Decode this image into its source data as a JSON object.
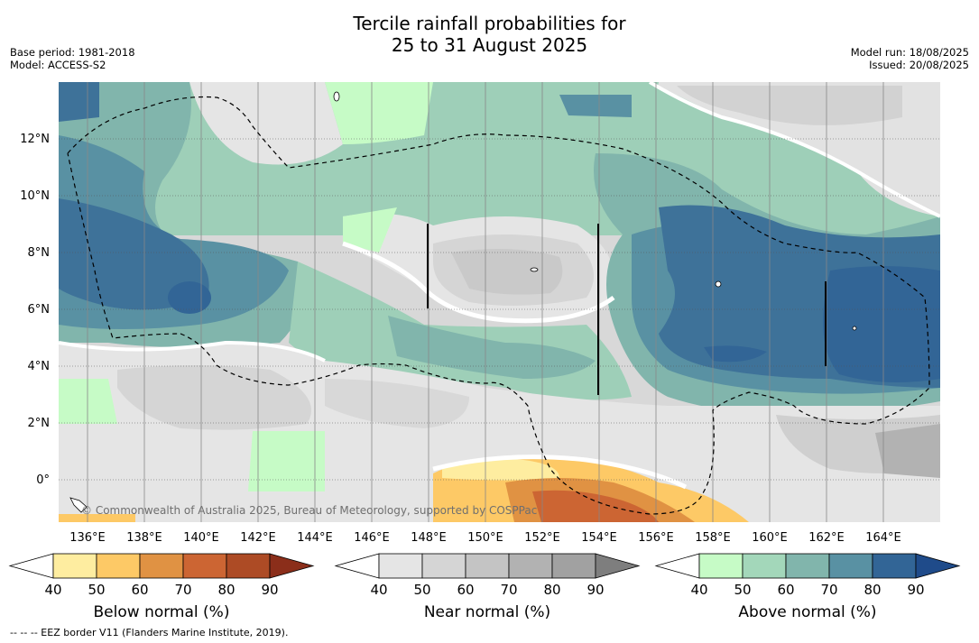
{
  "title": {
    "line1": "Tercile rainfall probabilities for",
    "line2": "25 to 31 August 2025"
  },
  "meta_left": {
    "base_period": "Base period: 1981-2018",
    "model": "Model: ACCESS-S2"
  },
  "meta_right": {
    "model_run": "Model run: 18/08/2025",
    "issued": "Issued: 20/08/2025"
  },
  "map": {
    "lat_labels": [
      "12°N",
      "10°N",
      "8°N",
      "6°N",
      "4°N",
      "2°N",
      "0°"
    ],
    "lon_labels": [
      "136°E",
      "138°E",
      "140°E",
      "142°E",
      "144°E",
      "146°E",
      "148°E",
      "150°E",
      "152°E",
      "154°E",
      "156°E",
      "158°E",
      "160°E",
      "162°E",
      "164°E"
    ],
    "copyright": "© Commonwealth of Australia 2025, Bureau of Meteorology, supported by COSPPac",
    "colors": {
      "land_bg": "#ffffff",
      "gridline": "#555555",
      "eez": "#000000"
    }
  },
  "colorbars": [
    {
      "name": "below",
      "title": "Below normal (%)",
      "ticks": [
        "40",
        "50",
        "60",
        "70",
        "80",
        "90"
      ],
      "colors": [
        "#ffffff",
        "#feeda0",
        "#fdc966",
        "#e09243",
        "#cc6533",
        "#ad4b25",
        "#8b2e1a"
      ]
    },
    {
      "name": "near",
      "title": "Near normal (%)",
      "ticks": [
        "40",
        "50",
        "60",
        "70",
        "80",
        "90"
      ],
      "colors": [
        "#ffffff",
        "#e5e5e5",
        "#d5d5d5",
        "#c4c4c4",
        "#b2b2b2",
        "#a1a1a1",
        "#7e7e7e"
      ]
    },
    {
      "name": "above",
      "title": "Above normal (%)",
      "ticks": [
        "40",
        "50",
        "60",
        "70",
        "80",
        "90"
      ],
      "colors": [
        "#ffffff",
        "#c6fbc6",
        "#a3d7ba",
        "#81b5ac",
        "#5991a3",
        "#326596",
        "#1f4b8a"
      ]
    }
  ],
  "footer": "--  --  -- EEZ border V11 (Flanders Marine Institute, 2019)."
}
